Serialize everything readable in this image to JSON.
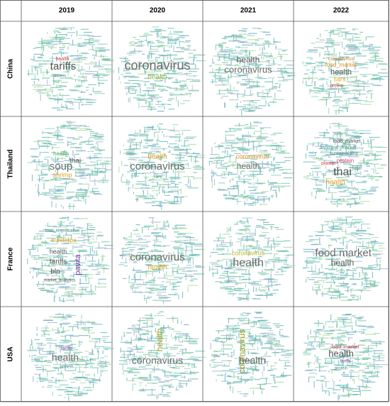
{
  "table": {
    "columns": [
      "2019",
      "2020",
      "2021",
      "2022"
    ],
    "rows": [
      {
        "label": "China",
        "cells": [
          [
            {
              "text": "health",
              "color": "#d9414a"
            },
            {
              "text": "tariffs",
              "color": "#555555"
            },
            {
              "text": "protein",
              "color": "#4a8a8a"
            }
          ],
          [
            {
              "text": "coronavirus",
              "color": "#6b6b6b"
            },
            {
              "text": "health",
              "color": "#9bbf3a"
            }
          ],
          [
            {
              "text": "health",
              "color": "#555555"
            },
            {
              "text": "coronavirus",
              "color": "#6b6b6b"
            }
          ],
          [
            {
              "text": "coronavirus",
              "color": "#c98b2b"
            },
            {
              "text": "food_market",
              "color": "#d98a1f"
            },
            {
              "text": "health",
              "color": "#555555"
            },
            {
              "text": "sars",
              "color": "#e0b020"
            },
            {
              "text": "protein",
              "color": "#c0392b"
            }
          ]
        ]
      },
      {
        "label": "Thailand",
        "cells": [
          [
            {
              "text": "health",
              "color": "#4caf50"
            },
            {
              "text": "thai",
              "color": "#555555"
            },
            {
              "text": "soup",
              "color": "#6b6b6b"
            },
            {
              "text": "shrimp",
              "color": "#e0a020"
            }
          ],
          [
            {
              "text": "health",
              "color": "#e0a020"
            },
            {
              "text": "coronavirus",
              "color": "#6b6b6b"
            },
            {
              "text": "sars",
              "color": "#4a8a8a"
            }
          ],
          [
            {
              "text": "coronavirus",
              "color": "#e08a1f"
            },
            {
              "text": "health",
              "color": "#6b6b6b"
            }
          ],
          [
            {
              "text": "food_market",
              "color": "#555555"
            },
            {
              "text": "fishmeal_market",
              "color": "#4a8a8a"
            },
            {
              "text": "sustainability",
              "color": "#4a8a8a"
            },
            {
              "text": "protein",
              "color": "#e0457b"
            },
            {
              "text": "plastic",
              "color": "#d9414a"
            },
            {
              "text": "thai",
              "color": "#555555"
            },
            {
              "text": "health",
              "color": "#e0a020"
            },
            {
              "text": "sugar",
              "color": "#4a8a8a"
            }
          ]
        ]
      },
      {
        "label": "France",
        "cells": [
          [
            {
              "text": "food_identification",
              "color": "#4a8a8a"
            },
            {
              "text": "bundespa",
              "color": "#e0a020"
            },
            {
              "text": "health",
              "color": "#555555"
            },
            {
              "text": "tariffs",
              "color": "#555555"
            },
            {
              "text": "bln",
              "color": "#555555"
            },
            {
              "text": "pavita",
              "color": "#7b3fa0"
            },
            {
              "text": "market_analytics",
              "color": "#555555"
            }
          ],
          [
            {
              "text": "coronavirus",
              "color": "#6b6b6b"
            },
            {
              "text": "health",
              "color": "#e0b020"
            }
          ],
          [
            {
              "text": "coronavirus",
              "color": "#b5b520"
            },
            {
              "text": "health",
              "color": "#6b6b6b"
            }
          ],
          [
            {
              "text": "food",
              "color": "#6b6b6b"
            },
            {
              "text": "market",
              "color": "#6b6b6b"
            },
            {
              "text": "health",
              "color": "#555555"
            }
          ]
        ]
      },
      {
        "label": "USA",
        "cells": [
          [
            {
              "text": "tariffs",
              "color": "#7b3fa0"
            },
            {
              "text": "health",
              "color": "#6b6b6b"
            },
            {
              "text": "protein",
              "color": "#4a8a8a"
            }
          ],
          [
            {
              "text": "health",
              "color": "#9a9a20"
            },
            {
              "text": "coronavirus",
              "color": "#6b6b6b"
            }
          ],
          [
            {
              "text": "coronavirus",
              "color": "#9a9a20"
            },
            {
              "text": "health",
              "color": "#6b6b6b"
            }
          ],
          [
            {
              "text": "health",
              "color": "#555555"
            },
            {
              "text": "food_market",
              "color": "#d9414a"
            },
            {
              "text": "tariffs",
              "color": "#7b3fa0"
            },
            {
              "text": "protein",
              "color": "#4a8a8a"
            }
          ]
        ]
      }
    ]
  }
}
